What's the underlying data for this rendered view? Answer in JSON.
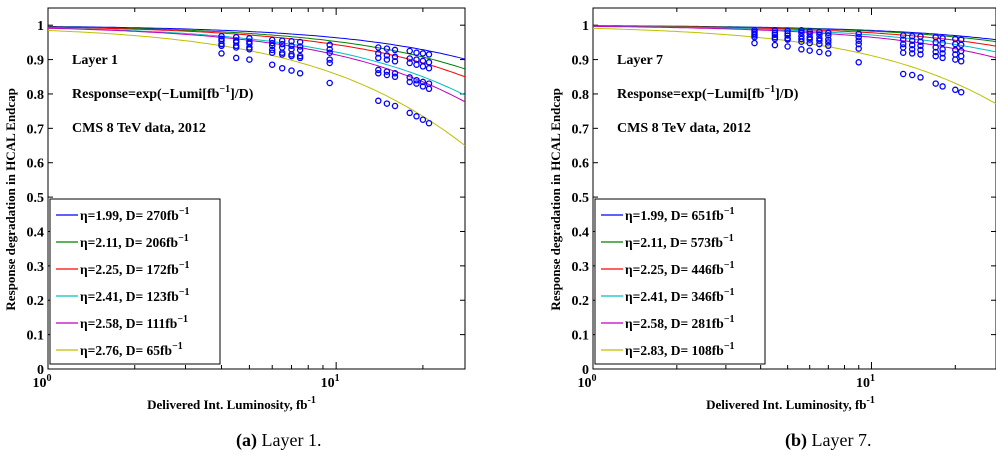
{
  "chart_data": [
    {
      "type": "scatter",
      "panel": "a",
      "caption_letter": "(a)",
      "caption_text": "Layer 1.",
      "xlabel": "Delivered Int. Luminosity, fb",
      "xlabel_sup": "-1",
      "ylabel": "Response degradation in HCAL Endcap",
      "xscale": "log",
      "xlim": [
        1,
        28
      ],
      "ylim": [
        0,
        1.05
      ],
      "yticks": [
        "0",
        "0.1",
        "0.2",
        "0.3",
        "0.4",
        "0.5",
        "0.6",
        "0.7",
        "0.8",
        "0.9",
        "1"
      ],
      "xticks": [
        {
          "base": "10",
          "exp": "0",
          "value": 1
        },
        {
          "base": "10",
          "exp": "1",
          "value": 10
        }
      ],
      "annotations": {
        "layer": "Layer 1",
        "formula_pre": "Response=exp(−Lumi[fb",
        "formula_sup": "−1",
        "formula_post": "]/D)",
        "dataset": "CMS 8 TeV data, 2012"
      },
      "legend_placement": "bottom-left",
      "series": [
        {
          "name": "η=1.99, D= 270fb",
          "sup": "−1",
          "D": 270,
          "color": "#0000ff",
          "points": [
            [
              4,
              0.968
            ],
            [
              4.5,
              0.965
            ],
            [
              5,
              0.962
            ],
            [
              6,
              0.957
            ],
            [
              6.5,
              0.955
            ],
            [
              7,
              0.953
            ],
            [
              7.5,
              0.951
            ],
            [
              9.5,
              0.943
            ],
            [
              14,
              0.935
            ],
            [
              15,
              0.932
            ],
            [
              16,
              0.928
            ],
            [
              18,
              0.925
            ],
            [
              19,
              0.92
            ],
            [
              20,
              0.918
            ],
            [
              21,
              0.915
            ]
          ]
        },
        {
          "name": "η=2.11, D= 206fb",
          "sup": "−1",
          "D": 206,
          "color": "#008000",
          "points": [
            [
              4,
              0.96
            ],
            [
              4.5,
              0.955
            ],
            [
              5,
              0.952
            ],
            [
              6,
              0.948
            ],
            [
              6.5,
              0.945
            ],
            [
              7,
              0.94
            ],
            [
              7.5,
              0.938
            ],
            [
              9.5,
              0.93
            ],
            [
              14,
              0.918
            ],
            [
              15,
              0.912
            ],
            [
              16,
              0.908
            ],
            [
              18,
              0.903
            ],
            [
              19,
              0.9
            ],
            [
              20,
              0.896
            ],
            [
              21,
              0.892
            ]
          ]
        },
        {
          "name": "η=2.25, D= 172fb",
          "sup": "−1",
          "D": 172,
          "color": "#ff0000",
          "points": [
            [
              4,
              0.955
            ],
            [
              4.5,
              0.95
            ],
            [
              5,
              0.946
            ],
            [
              6,
              0.94
            ],
            [
              6.5,
              0.935
            ],
            [
              7,
              0.93
            ],
            [
              7.5,
              0.928
            ],
            [
              9.5,
              0.92
            ],
            [
              14,
              0.905
            ],
            [
              15,
              0.9
            ],
            [
              16,
              0.895
            ],
            [
              18,
              0.89
            ],
            [
              19,
              0.885
            ],
            [
              20,
              0.88
            ],
            [
              21,
              0.875
            ]
          ]
        },
        {
          "name": "η=2.41, D= 123fb",
          "sup": "−1",
          "D": 123,
          "color": "#00c0c0",
          "points": [
            [
              4,
              0.945
            ],
            [
              4.5,
              0.94
            ],
            [
              5,
              0.935
            ],
            [
              6,
              0.928
            ],
            [
              6.5,
              0.92
            ],
            [
              7,
              0.915
            ],
            [
              7.5,
              0.91
            ],
            [
              9.5,
              0.9
            ],
            [
              14,
              0.87
            ],
            [
              15,
              0.865
            ],
            [
              16,
              0.86
            ],
            [
              18,
              0.848
            ],
            [
              19,
              0.84
            ],
            [
              20,
              0.835
            ],
            [
              21,
              0.83
            ]
          ]
        },
        {
          "name": "η=2.58, D= 111fb",
          "sup": "−1",
          "D": 111,
          "color": "#bf00bf",
          "points": [
            [
              4,
              0.94
            ],
            [
              4.5,
              0.935
            ],
            [
              5,
              0.93
            ],
            [
              6,
              0.92
            ],
            [
              6.5,
              0.915
            ],
            [
              7,
              0.91
            ],
            [
              7.5,
              0.905
            ],
            [
              9.5,
              0.89
            ],
            [
              14,
              0.86
            ],
            [
              15,
              0.855
            ],
            [
              16,
              0.85
            ],
            [
              18,
              0.835
            ],
            [
              19,
              0.83
            ],
            [
              20,
              0.822
            ],
            [
              21,
              0.815
            ]
          ]
        },
        {
          "name": "η=2.76, D=  65fb",
          "sup": "−1",
          "D": 65,
          "color": "#bfbf00",
          "points": [
            [
              4,
              0.918
            ],
            [
              4.5,
              0.905
            ],
            [
              5,
              0.9
            ],
            [
              6,
              0.885
            ],
            [
              6.5,
              0.875
            ],
            [
              7,
              0.868
            ],
            [
              7.5,
              0.86
            ],
            [
              9.5,
              0.832
            ],
            [
              14,
              0.78
            ],
            [
              15,
              0.772
            ],
            [
              16,
              0.765
            ],
            [
              18,
              0.745
            ],
            [
              19,
              0.735
            ],
            [
              20,
              0.725
            ],
            [
              21,
              0.715
            ]
          ]
        }
      ]
    },
    {
      "type": "scatter",
      "panel": "b",
      "caption_letter": "(b)",
      "caption_text": "Layer 7.",
      "xlabel": "Delivered Int. Luminosity, fb",
      "xlabel_sup": "-1",
      "ylabel": "Response degradation in HCAL Endcap",
      "xscale": "log",
      "xlim": [
        1,
        28
      ],
      "ylim": [
        0,
        1.05
      ],
      "yticks": [
        "0",
        "0.1",
        "0.2",
        "0.3",
        "0.4",
        "0.5",
        "0.6",
        "0.7",
        "0.8",
        "0.9",
        "1"
      ],
      "xticks": [
        {
          "base": "10",
          "exp": "0",
          "value": 1
        },
        {
          "base": "10",
          "exp": "1",
          "value": 10
        }
      ],
      "annotations": {
        "layer": "Layer 7",
        "formula_pre": "Response=exp(−Lumi[fb",
        "formula_sup": "−1",
        "formula_post": "]/D)",
        "dataset": "CMS 8 TeV data, 2012"
      },
      "legend_placement": "bottom-left",
      "series": [
        {
          "name": "η=1.99, D= 651fb",
          "sup": "−1",
          "D": 651,
          "color": "#0000ff",
          "points": [
            [
              3.8,
              0.985
            ],
            [
              4.5,
              0.985
            ],
            [
              5,
              0.983
            ],
            [
              5.6,
              0.985
            ],
            [
              6,
              0.982
            ],
            [
              6.5,
              0.98
            ],
            [
              7,
              0.978
            ],
            [
              9,
              0.975
            ],
            [
              13,
              0.97
            ],
            [
              14,
              0.968
            ],
            [
              15,
              0.967
            ],
            [
              17,
              0.965
            ],
            [
              18,
              0.962
            ],
            [
              20,
              0.96
            ],
            [
              21,
              0.958
            ]
          ]
        },
        {
          "name": "η=2.11, D= 573fb",
          "sup": "−1",
          "D": 573,
          "color": "#008000",
          "points": [
            [
              3.8,
              0.98
            ],
            [
              4.5,
              0.978
            ],
            [
              5,
              0.976
            ],
            [
              5.6,
              0.978
            ],
            [
              6,
              0.975
            ],
            [
              6.5,
              0.972
            ],
            [
              7,
              0.97
            ],
            [
              9,
              0.965
            ],
            [
              13,
              0.958
            ],
            [
              14,
              0.955
            ],
            [
              15,
              0.952
            ],
            [
              17,
              0.95
            ],
            [
              18,
              0.948
            ],
            [
              20,
              0.945
            ],
            [
              21,
              0.943
            ]
          ]
        },
        {
          "name": "η=2.25, D= 446fb",
          "sup": "−1",
          "D": 446,
          "color": "#ff0000",
          "points": [
            [
              3.8,
              0.975
            ],
            [
              4.5,
              0.972
            ],
            [
              5,
              0.97
            ],
            [
              5.6,
              0.968
            ],
            [
              6,
              0.965
            ],
            [
              6.5,
              0.962
            ],
            [
              7,
              0.958
            ],
            [
              9,
              0.955
            ],
            [
              13,
              0.945
            ],
            [
              14,
              0.942
            ],
            [
              15,
              0.94
            ],
            [
              17,
              0.935
            ],
            [
              18,
              0.93
            ],
            [
              20,
              0.928
            ],
            [
              21,
              0.925
            ]
          ]
        },
        {
          "name": "η=2.41, D= 346fb",
          "sup": "−1",
          "D": 346,
          "color": "#00c0c0",
          "points": [
            [
              3.8,
              0.97
            ],
            [
              4.5,
              0.965
            ],
            [
              5,
              0.962
            ],
            [
              5.6,
              0.96
            ],
            [
              6,
              0.958
            ],
            [
              6.5,
              0.955
            ],
            [
              7,
              0.95
            ],
            [
              9,
              0.945
            ],
            [
              13,
              0.935
            ],
            [
              14,
              0.93
            ],
            [
              15,
              0.928
            ],
            [
              17,
              0.922
            ],
            [
              18,
              0.918
            ],
            [
              20,
              0.915
            ],
            [
              21,
              0.91
            ]
          ]
        },
        {
          "name": "η=2.58, D= 281fb",
          "sup": "−1",
          "D": 281,
          "color": "#bf00bf",
          "points": [
            [
              3.8,
              0.965
            ],
            [
              4.5,
              0.96
            ],
            [
              5,
              0.958
            ],
            [
              5.6,
              0.952
            ],
            [
              6,
              0.948
            ],
            [
              6.5,
              0.945
            ],
            [
              7,
              0.94
            ],
            [
              9,
              0.932
            ],
            [
              13,
              0.92
            ],
            [
              14,
              0.918
            ],
            [
              15,
              0.915
            ],
            [
              17,
              0.91
            ],
            [
              18,
              0.905
            ],
            [
              20,
              0.9
            ],
            [
              21,
              0.895
            ]
          ]
        },
        {
          "name": "η=2.83, D= 108fb",
          "sup": "−1",
          "D": 108,
          "color": "#bfbf00",
          "points": [
            [
              3.8,
              0.948
            ],
            [
              4.5,
              0.942
            ],
            [
              5,
              0.938
            ],
            [
              5.6,
              0.93
            ],
            [
              6,
              0.926
            ],
            [
              6.5,
              0.922
            ],
            [
              7,
              0.918
            ],
            [
              9,
              0.892
            ],
            [
              13,
              0.858
            ],
            [
              14,
              0.855
            ],
            [
              15,
              0.848
            ],
            [
              17,
              0.83
            ],
            [
              18,
              0.822
            ],
            [
              20,
              0.812
            ],
            [
              21,
              0.805
            ]
          ]
        }
      ]
    }
  ]
}
